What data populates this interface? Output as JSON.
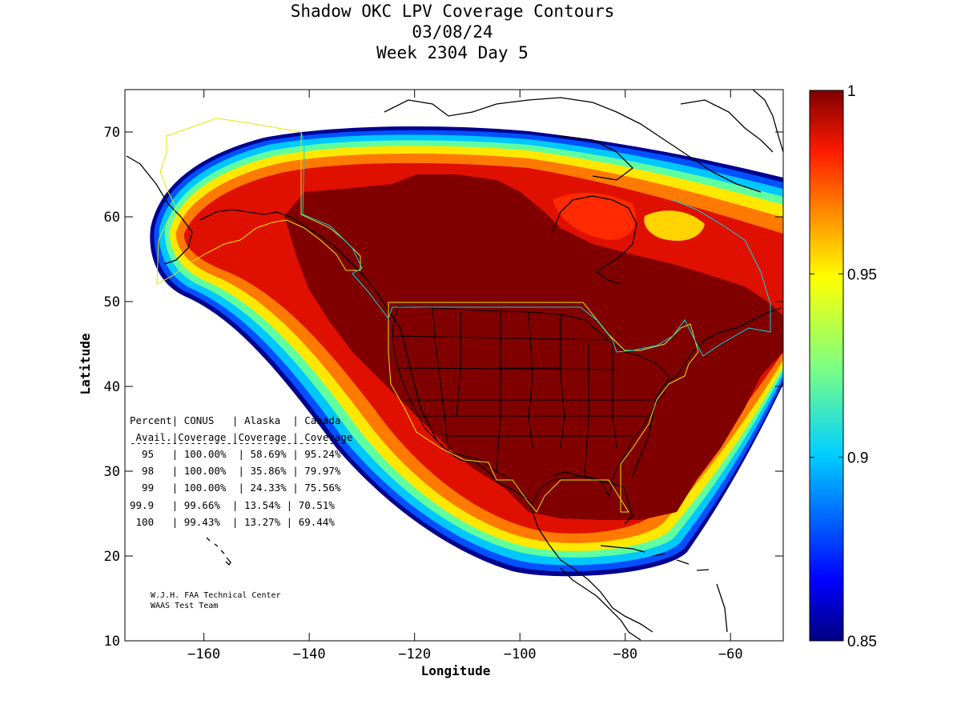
{
  "title": {
    "line1": "Shadow OKC LPV Coverage Contours",
    "line2": "03/08/24",
    "line3": "Week 2304 Day 5"
  },
  "map": {
    "xlabel": "Longitude",
    "ylabel": "Latitude",
    "xlim": [
      -175,
      -50
    ],
    "ylim": [
      10,
      75
    ],
    "xticks": [
      -160,
      -140,
      -120,
      -100,
      -80,
      -60
    ],
    "yticks": [
      10,
      20,
      30,
      40,
      50,
      60,
      70
    ]
  },
  "colorbar": {
    "min": 0.85,
    "max": 1,
    "ticks": [
      {
        "value": 1,
        "label": "1"
      },
      {
        "value": 0.95,
        "label": "0.95"
      },
      {
        "value": 0.9,
        "label": "0.9"
      },
      {
        "value": 0.85,
        "label": "0.85"
      }
    ]
  },
  "coverage_table": {
    "header1": "Percent| CONUS   | Alaska  | Canada",
    "header2": " Avail.|Coverage |Coverage | Coverage",
    "separator": "------------------------------------",
    "rows": [
      "  95   | 100.00%  | 58.69% | 95.24%",
      "  98   | 100.00%  | 35.86% | 79.97%",
      "  99   | 100.00%  | 24.33% | 75.56%",
      "99.9   | 99.66%  | 13.54% | 70.51%",
      " 100   | 99.43%  | 13.27% | 69.44%"
    ]
  },
  "credit": {
    "line1": "W.J.H. FAA Technical Center",
    "line2": "WAAS Test Team"
  }
}
